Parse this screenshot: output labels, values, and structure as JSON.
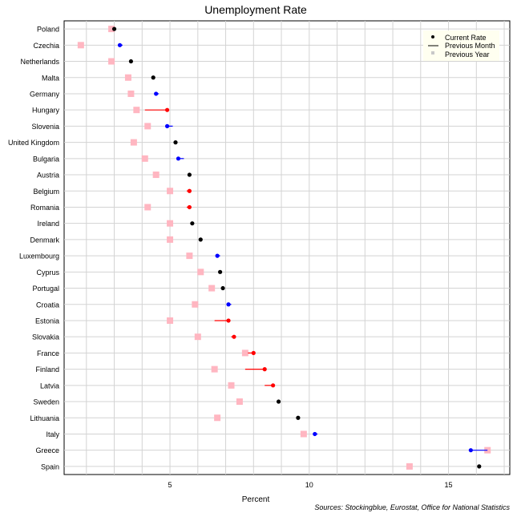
{
  "chart_data": {
    "type": "scatter",
    "title": "Unemployment Rate",
    "xlabel": "Percent",
    "source": "Sources: Stockingblue, Eurostat, Office for National Statistics",
    "xlim": [
      1.2,
      17.2
    ],
    "xticks": [
      5,
      10,
      15
    ],
    "grid": true,
    "legend": {
      "placement": "top-right",
      "entries": [
        "Current Rate",
        "Previous Month",
        "Previous Year"
      ]
    },
    "colors": {
      "up": "#ff0000",
      "down": "#0000ff",
      "same": "#000000",
      "previous_year": "#ffb6c1",
      "grid": "#d3d3d3"
    },
    "countries": [
      {
        "name": "Poland",
        "current": 3.0,
        "prev_month": 3.0,
        "prev_year": 2.9
      },
      {
        "name": "Czechia",
        "current": 3.2,
        "prev_month": 3.3,
        "prev_year": 1.8
      },
      {
        "name": "Netherlands",
        "current": 3.6,
        "prev_month": 3.6,
        "prev_year": 2.9
      },
      {
        "name": "Malta",
        "current": 4.4,
        "prev_month": 4.4,
        "prev_year": 3.5
      },
      {
        "name": "Germany",
        "current": 4.5,
        "prev_month": 4.6,
        "prev_year": 3.6
      },
      {
        "name": "Hungary",
        "current": 4.9,
        "prev_month": 4.1,
        "prev_year": 3.8
      },
      {
        "name": "Slovenia",
        "current": 4.9,
        "prev_month": 5.1,
        "prev_year": 4.2
      },
      {
        "name": "United Kingdom",
        "current": 5.2,
        "prev_month": 5.2,
        "prev_year": 3.7
      },
      {
        "name": "Bulgaria",
        "current": 5.3,
        "prev_month": 5.5,
        "prev_year": 4.1
      },
      {
        "name": "Austria",
        "current": 5.7,
        "prev_month": 5.7,
        "prev_year": 4.5
      },
      {
        "name": "Belgium",
        "current": 5.7,
        "prev_month": 5.6,
        "prev_year": 5.0
      },
      {
        "name": "Romania",
        "current": 5.7,
        "prev_month": 5.6,
        "prev_year": 4.2
      },
      {
        "name": "Ireland",
        "current": 5.8,
        "prev_month": 5.8,
        "prev_year": 5.0
      },
      {
        "name": "Denmark",
        "current": 6.1,
        "prev_month": 6.1,
        "prev_year": 5.0
      },
      {
        "name": "Luxembourg",
        "current": 6.7,
        "prev_month": 6.8,
        "prev_year": 5.7
      },
      {
        "name": "Cyprus",
        "current": 6.8,
        "prev_month": 6.8,
        "prev_year": 6.1
      },
      {
        "name": "Portugal",
        "current": 6.9,
        "prev_month": 6.9,
        "prev_year": 6.5
      },
      {
        "name": "Croatia",
        "current": 7.1,
        "prev_month": 7.2,
        "prev_year": 5.9
      },
      {
        "name": "Estonia",
        "current": 7.1,
        "prev_month": 6.6,
        "prev_year": 5.0
      },
      {
        "name": "Slovakia",
        "current": 7.3,
        "prev_month": 7.2,
        "prev_year": 6.0
      },
      {
        "name": "France",
        "current": 8.0,
        "prev_month": 7.8,
        "prev_year": 7.7
      },
      {
        "name": "Finland",
        "current": 8.4,
        "prev_month": 7.7,
        "prev_year": 6.6
      },
      {
        "name": "Latvia",
        "current": 8.7,
        "prev_month": 8.4,
        "prev_year": 7.2
      },
      {
        "name": "Sweden",
        "current": 8.9,
        "prev_month": 8.9,
        "prev_year": 7.5
      },
      {
        "name": "Lithuania",
        "current": 9.6,
        "prev_month": 9.6,
        "prev_year": 6.7
      },
      {
        "name": "Italy",
        "current": 10.2,
        "prev_month": 10.3,
        "prev_year": 9.8
      },
      {
        "name": "Greece",
        "current": 15.8,
        "prev_month": 16.4,
        "prev_year": 16.4
      },
      {
        "name": "Spain",
        "current": 16.1,
        "prev_month": 16.1,
        "prev_year": 13.6
      }
    ]
  }
}
